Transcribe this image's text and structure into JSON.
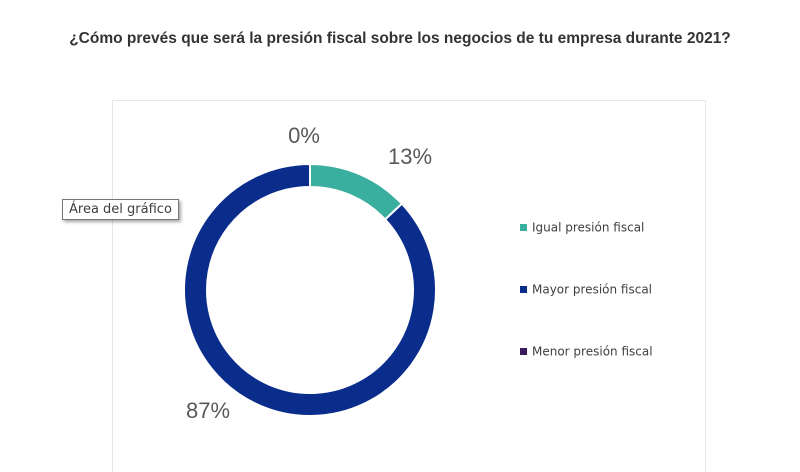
{
  "title": "¿Cómo prevés que será la presión fiscal sobre los negocios de tu empresa durante 2021?",
  "tooltip": {
    "text": "Área del gráfico"
  },
  "colors": {
    "background": "#ffffff",
    "text": "#333333",
    "label": "#595959"
  },
  "chart_data": {
    "type": "pie",
    "variant": "doughnut",
    "title": "¿Cómo prevés que será la presión fiscal sobre los negocios de tu empresa durante 2021?",
    "legend_position": "right",
    "series": [
      {
        "name": "Igual presión fiscal",
        "value": 13,
        "label": "13%",
        "color": "#3aaf9f"
      },
      {
        "name": "Mayor presión fiscal",
        "value": 87,
        "label": "87%",
        "color": "#0a2d8c"
      },
      {
        "name": "Menor presión fiscal",
        "value": 0,
        "label": "0%",
        "color": "#3b1a5b"
      }
    ]
  }
}
